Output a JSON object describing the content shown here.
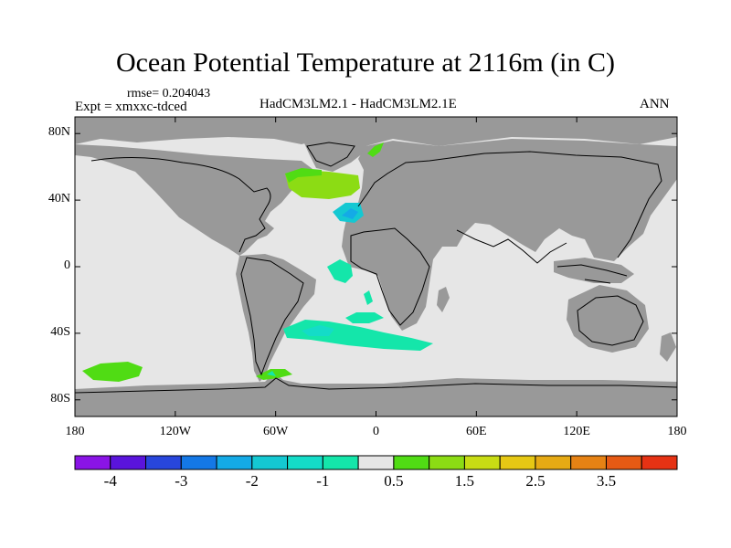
{
  "title": "Ocean Potential Temperature at 2116m (in C)",
  "rmse_text": "rmse= 0.204043",
  "expt_text": "Expt = xmxxc-tdced",
  "models_text": "HadCM3LM2.1 - HadCM3LM2.1E",
  "period_text": "ANN",
  "lat_labels": [
    "80N",
    "40N",
    "0",
    "40S",
    "80S"
  ],
  "lon_labels": [
    "180",
    "120W",
    "60W",
    "0",
    "60E",
    "120E",
    "180"
  ],
  "colors": {
    "land": "#999999",
    "ocean_zero": "#e6e6e6",
    "coast": "#000000"
  },
  "colorbar": {
    "colors": [
      "#8a14e6",
      "#5a14dc",
      "#2846dc",
      "#1478e6",
      "#14aae6",
      "#14c8d2",
      "#14dcc8",
      "#14e6aa",
      "#e6e6e6",
      "#50dc14",
      "#8cdc14",
      "#c8dc14",
      "#e6c814",
      "#e6aa14",
      "#e68214",
      "#e65a14",
      "#e63214"
    ],
    "labels": [
      "-4",
      "-3",
      "-2",
      "-1",
      "0.5",
      "1.5",
      "2.5",
      "3.5"
    ]
  }
}
